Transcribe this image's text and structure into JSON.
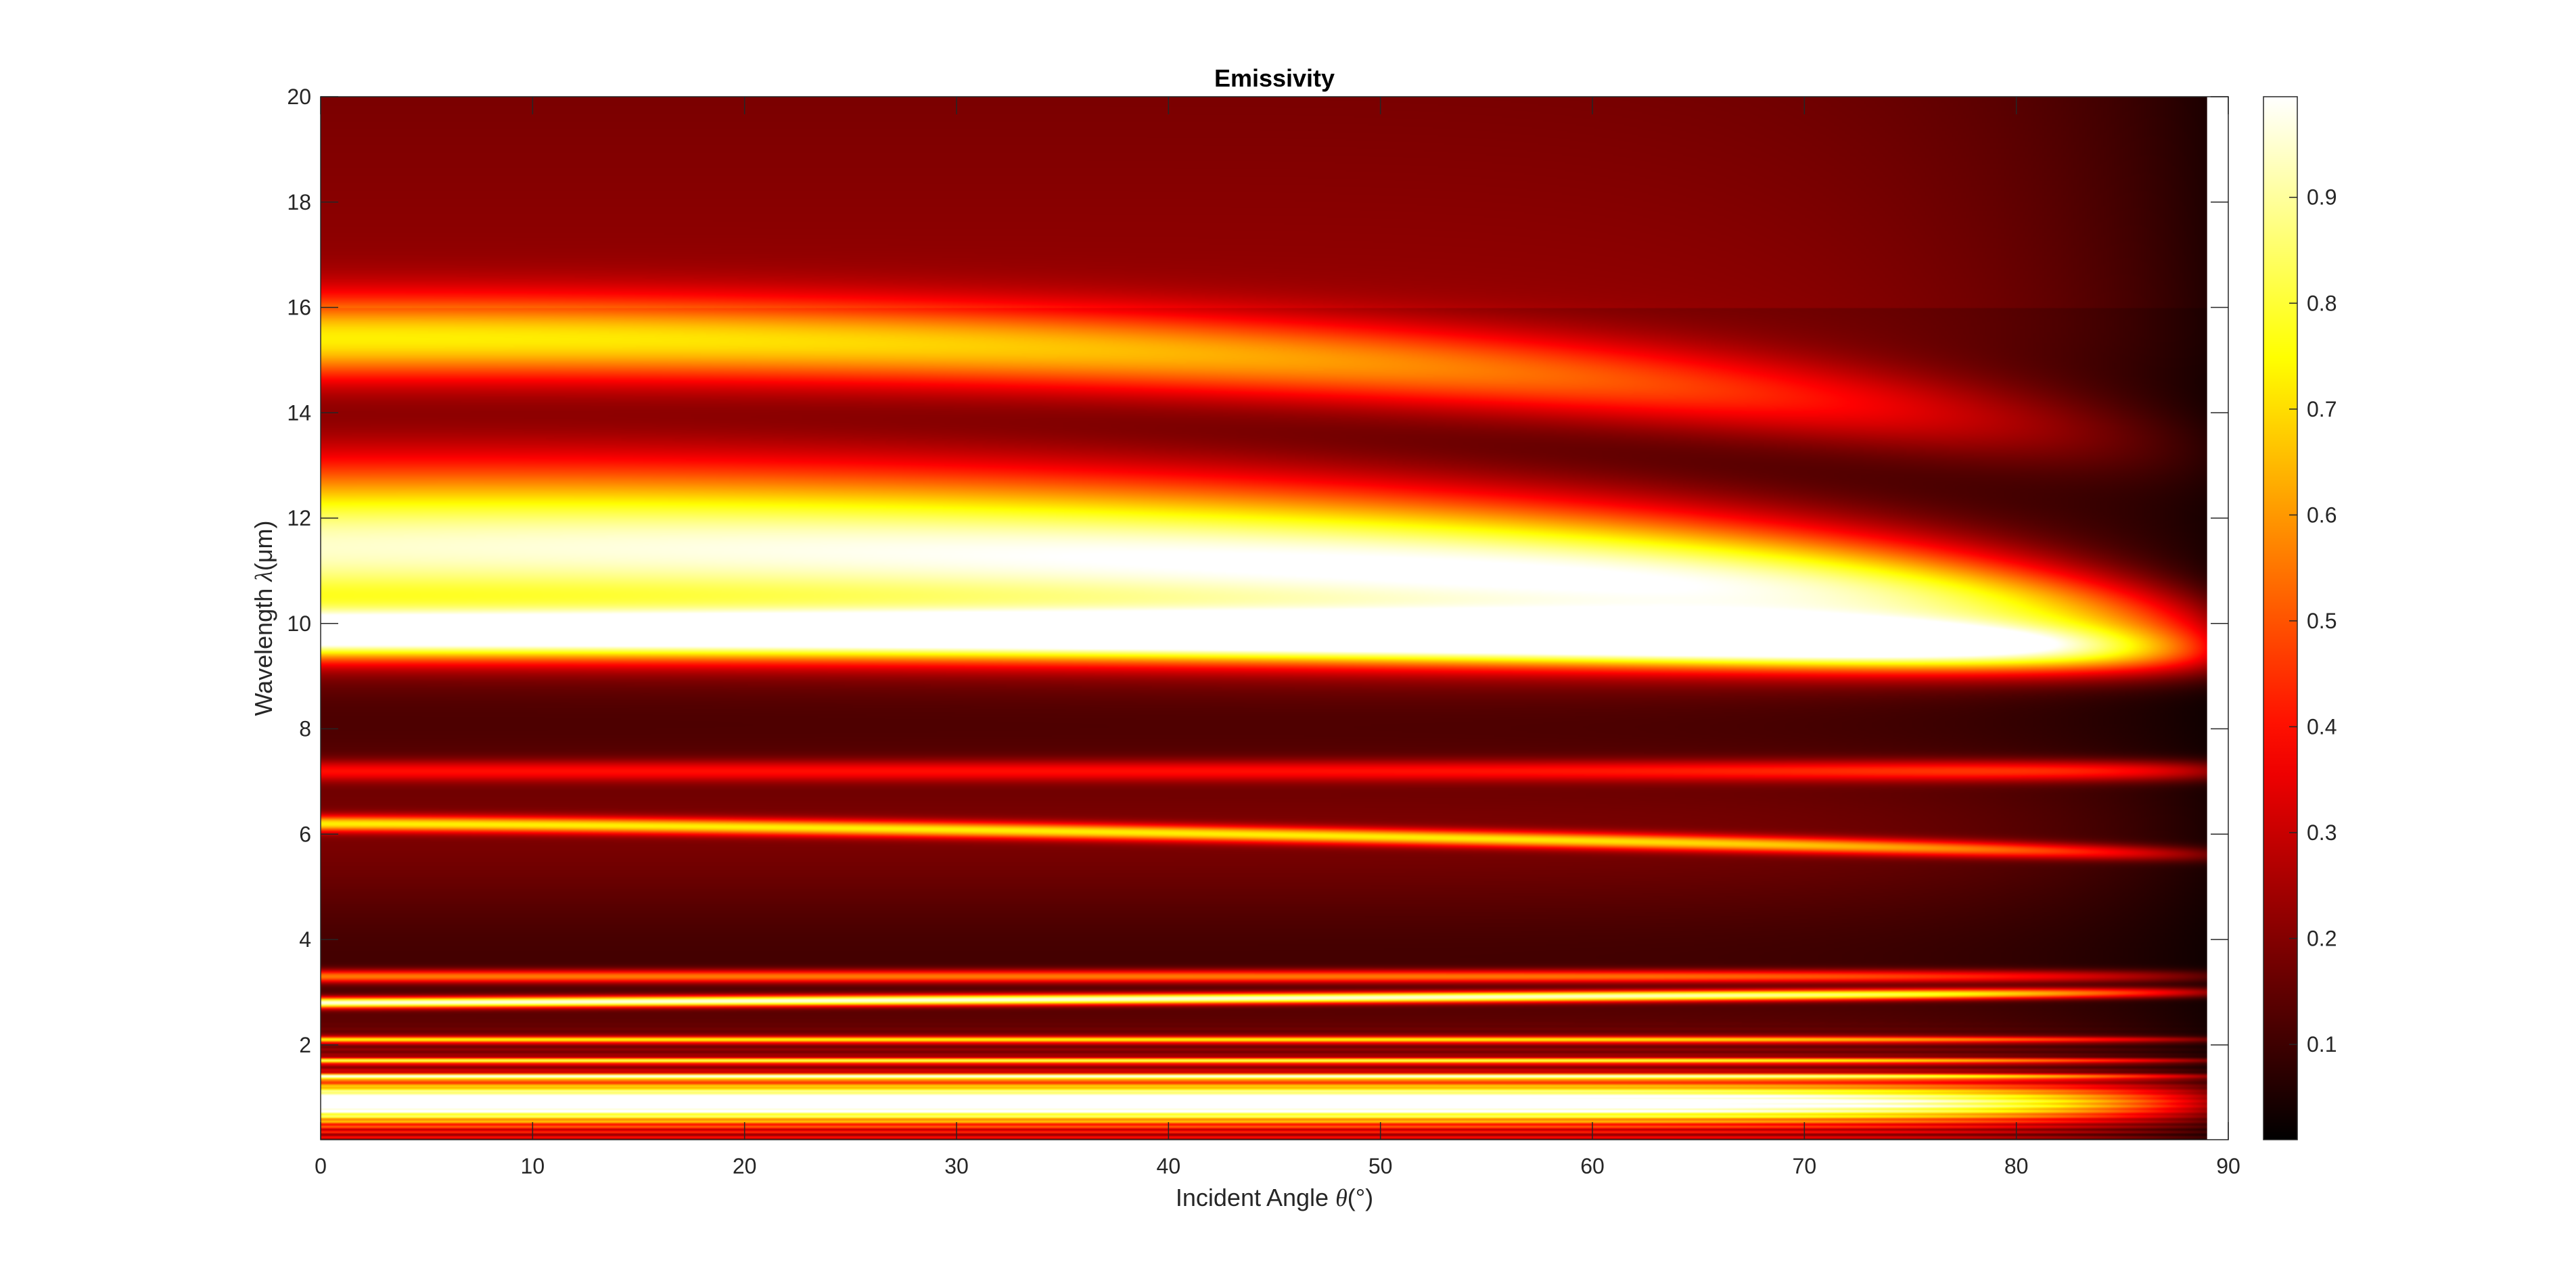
{
  "chart_data": {
    "type": "heatmap",
    "title": "Emissivity",
    "xlabel_prefix": "Incident Angle ",
    "xlabel_symbol": "θ",
    "xlabel_suffix": "(°)",
    "ylabel_prefix": "Wavelength ",
    "ylabel_symbol": "λ",
    "ylabel_suffix": "(μm)",
    "xlim": [
      0,
      90
    ],
    "ylim": [
      0.2,
      20
    ],
    "x_data_range": [
      0,
      89
    ],
    "xticks": [
      0,
      10,
      20,
      30,
      40,
      50,
      60,
      70,
      80,
      90
    ],
    "xtick_labels": [
      "0",
      "10",
      "20",
      "30",
      "40",
      "50",
      "60",
      "70",
      "80",
      "90"
    ],
    "yticks": [
      2,
      4,
      6,
      8,
      10,
      12,
      14,
      16,
      18,
      20
    ],
    "ytick_labels": [
      "2",
      "4",
      "6",
      "8",
      "10",
      "12",
      "14",
      "16",
      "18",
      "20"
    ],
    "colormap": "hot",
    "colormap_stops": [
      "#000000",
      "#ff0000",
      "#ffff00",
      "#ffffff"
    ],
    "clim": [
      0.01,
      0.995
    ],
    "colorbar_ticks": [
      0.1,
      0.2,
      0.3,
      0.4,
      0.5,
      0.6,
      0.7,
      0.8,
      0.9
    ],
    "colorbar_tick_labels": [
      "0.1",
      "0.2",
      "0.3",
      "0.4",
      "0.5",
      "0.6",
      "0.7",
      "0.8",
      "0.9"
    ],
    "colorbar_location": "right",
    "grid": false,
    "bands": [
      {
        "center_lambda": 11.5,
        "width_lambda": 1.6,
        "emissivity": 0.78
      },
      {
        "center_lambda": 15.4,
        "width_lambda": 0.8,
        "emissivity": 0.55
      },
      {
        "center_lambda": 9.8,
        "width_lambda": 0.45,
        "emissivity": 0.85
      },
      {
        "center_lambda": 6.2,
        "width_lambda": 0.15,
        "emissivity": 0.55
      },
      {
        "center_lambda": 7.2,
        "width_lambda": 0.2,
        "emissivity": 0.25
      },
      {
        "center_lambda": 2.8,
        "width_lambda": 0.1,
        "emissivity": 0.85
      },
      {
        "center_lambda": 3.3,
        "width_lambda": 0.12,
        "emissivity": 0.45
      },
      {
        "center_lambda": 2.1,
        "width_lambda": 0.06,
        "emissivity": 0.55
      },
      {
        "center_lambda": 1.7,
        "width_lambda": 0.05,
        "emissivity": 0.6
      },
      {
        "center_lambda": 1.4,
        "width_lambda": 0.05,
        "emissivity": 0.65
      },
      {
        "center_lambda": 0.9,
        "width_lambda": 0.35,
        "emissivity": 0.88
      }
    ]
  }
}
